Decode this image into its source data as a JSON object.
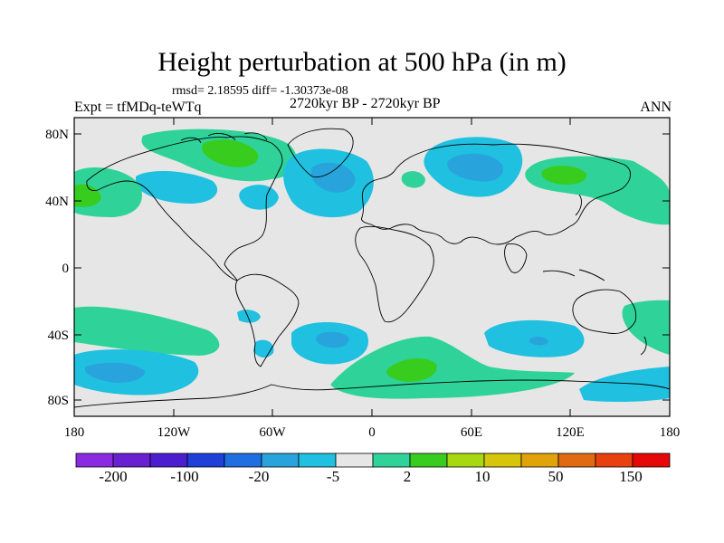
{
  "title": "Height perturbation at 500 hPa (in m)",
  "stats_line": "rmsd= 2.18595 diff= -1.30373e-08",
  "experiment": "Expt = tfMDq-teWTq",
  "period": "2720kyr BP - 2720kyr BP",
  "season": "ANN",
  "x_axis": {
    "tick_labels": [
      "180",
      "120W",
      "60W",
      "0",
      "60E",
      "120E",
      "180"
    ]
  },
  "y_axis": {
    "tick_labels": [
      "80N",
      "40N",
      "0",
      "40S",
      "80S"
    ]
  },
  "colorbar": {
    "colors": [
      "#8a2be2",
      "#6a1fd0",
      "#4b1ecf",
      "#1e3fd8",
      "#1f6fe0",
      "#29a3dc",
      "#1fc0e0",
      "#e6e6e6",
      "#2fd39a",
      "#38cc1e",
      "#a8d810",
      "#d6c50a",
      "#e0a30a",
      "#e06a12",
      "#e8400e",
      "#e60808"
    ],
    "labels": [
      "-200",
      "-100",
      "-20",
      "-5",
      "2",
      "10",
      "50",
      "150"
    ]
  },
  "map_colors": {
    "background": "#e6e6e6",
    "cyan": "#1fc0e0",
    "blue": "#29a3dc",
    "green_light": "#2fd39a",
    "green": "#38cc1e"
  }
}
